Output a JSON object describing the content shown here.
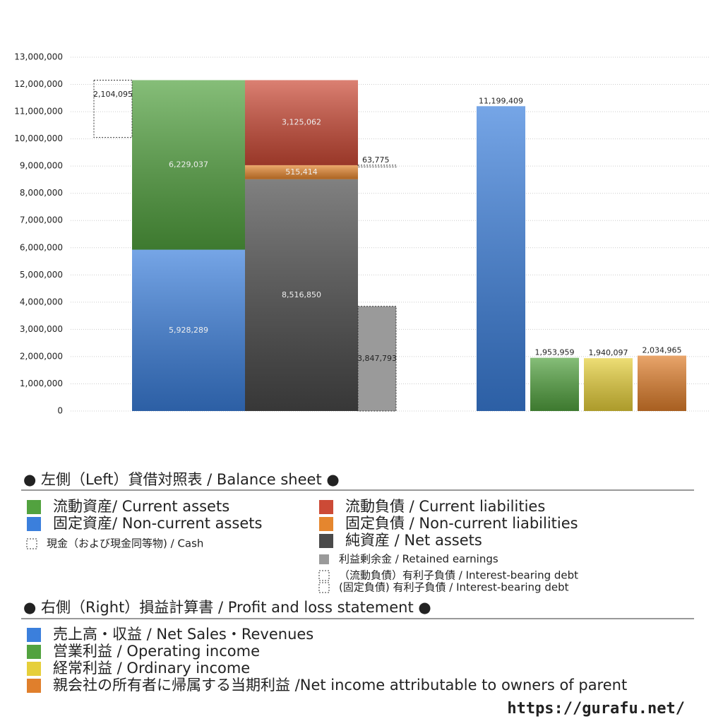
{
  "chart_data": {
    "type": "balance_sheet",
    "ylim": [
      0,
      13000000
    ],
    "yticks": [
      0,
      {
        "value": 1000000,
        "label": "1,000,000"
      },
      {
        "value": 2000000,
        "label": "2,000,000"
      },
      {
        "value": 3000000,
        "label": "3,000,000"
      },
      {
        "value": 4000000,
        "label": "4,000,000"
      },
      {
        "value": 5000000,
        "label": "5,000,000"
      },
      {
        "value": 6000000,
        "label": "6,000,000"
      },
      {
        "value": 7000000,
        "label": "7,000,000"
      },
      {
        "value": 8000000,
        "label": "8,000,000"
      },
      {
        "value": 9000000,
        "label": "9,000,000"
      },
      {
        "value": 10000000,
        "label": "10,000,000"
      },
      {
        "value": 11000000,
        "label": "11,000,000"
      },
      {
        "value": 12000000,
        "label": "12,000,000"
      },
      {
        "value": 13000000,
        "label": "13,000,000"
      }
    ],
    "grid": true,
    "left": {
      "title": "● 左側（Left）貸借対照表 / Balance sheet ●",
      "assets": [
        {
          "name": "固定資産/ Non-current assets",
          "color": "#3b7fdc",
          "values": [
            5928289
          ],
          "value_labels": [
            "5,928,289"
          ]
        },
        {
          "name": "流動資産/ Current assets",
          "color": "#52a23f",
          "values": [
            6229037
          ],
          "value_labels": [
            "6,229,037"
          ]
        }
      ],
      "liabilities": [
        {
          "name": "純資産 / Net assets",
          "color": "#4a4a4a",
          "values": [
            8516850
          ],
          "value_labels": [
            "8,516,850"
          ]
        },
        {
          "name": "固定負債 / Non-current liabilities",
          "color": "#e5862e",
          "values": [
            515414
          ],
          "value_labels": [
            "515,414"
          ]
        },
        {
          "name": "流動負債 /  Current liabilities",
          "color": "#cc4a36",
          "values": [
            3125062
          ],
          "value_labels": [
            "3,125,062"
          ]
        }
      ],
      "cash": {
        "name": "現金（および現金同等物) / Cash",
        "values": [
          2104095
        ],
        "value_labels": [
          "2,104,095"
        ]
      },
      "retained": {
        "name": "利益剰余金 / Retained earnings",
        "color": "#9a9a9a",
        "values": [
          3847793
        ],
        "value_labels": [
          "3,847,793"
        ]
      },
      "debt": [
        {
          "name": "（流動負債）有利子負債 / Interest-bearing debt",
          "values": []
        },
        {
          "name": "(固定負債) 有利子負債 / Interest-bearing debt",
          "values": [
            63775
          ],
          "value_labels": [
            "63,775"
          ]
        }
      ]
    },
    "right": {
      "title": "● 右側（Right）損益計算書 / Profit and loss statement ●",
      "series": [
        {
          "name": "売上高・収益 / Net Sales・Revenues",
          "color": "#3b7fdc",
          "values": [
            11199409
          ],
          "value_labels": [
            "11,199,409"
          ]
        },
        {
          "name": "営業利益 / Operating income",
          "color": "#52a23f",
          "values": [
            1953959
          ],
          "value_labels": [
            "1,953,959"
          ]
        },
        {
          "name": "経常利益 / Ordinary income",
          "color": "#e6cf3a",
          "values": [
            1940097
          ],
          "value_labels": [
            "1,940,097"
          ]
        },
        {
          "name": "親会社の所有者に帰属する当期利益 /Net income attributable to owners of parent",
          "color": "#e07f2c",
          "values": [
            2034965
          ],
          "value_labels": [
            "2,034,965"
          ]
        }
      ]
    },
    "source": "https://gurafu.net/"
  }
}
